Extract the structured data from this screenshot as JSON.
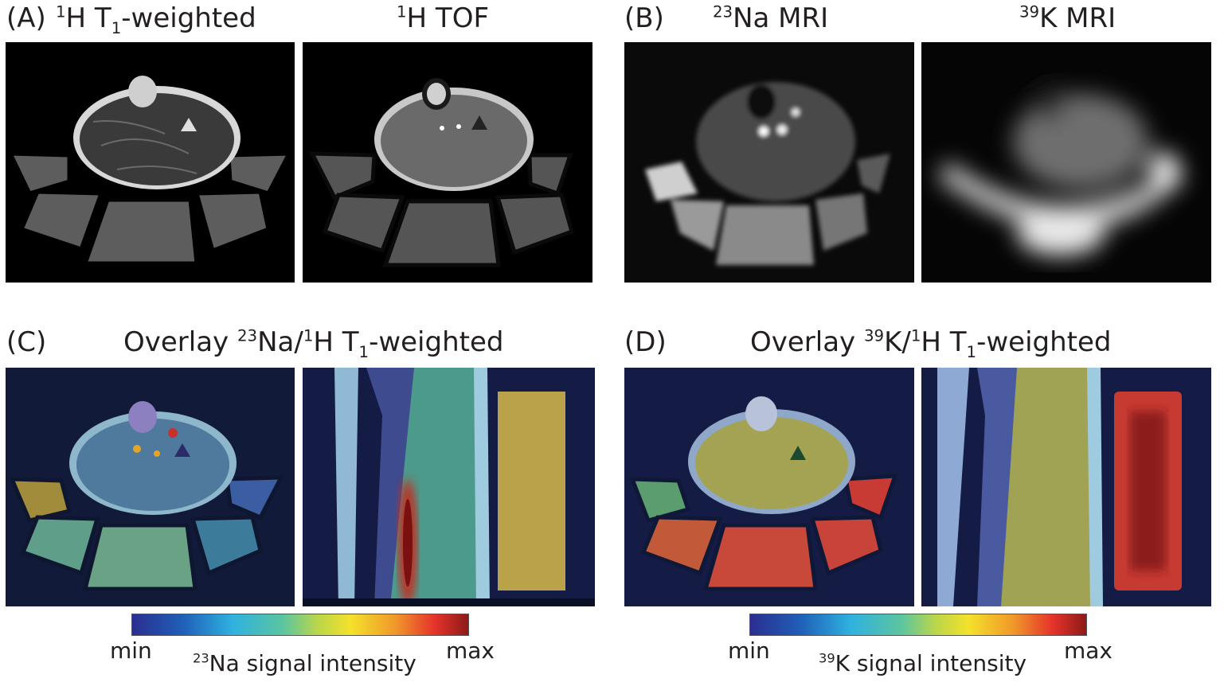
{
  "panels": {
    "A": {
      "letter": "(A)",
      "titles": [
        {
          "sup": "1",
          "main": "H T",
          "sub": "1",
          "tail": "-weighted"
        },
        {
          "sup": "1",
          "main": "H TOF",
          "sub": "",
          "tail": ""
        }
      ]
    },
    "B": {
      "letter": "(B)",
      "titles": [
        {
          "sup": "23",
          "main": "Na MRI",
          "sub": "",
          "tail": ""
        },
        {
          "sup": "39",
          "main": "K MRI",
          "sub": "",
          "tail": ""
        }
      ]
    },
    "C": {
      "letter": "(C)",
      "title": {
        "pre": "Overlay ",
        "sup1": "23",
        "mid": "Na/",
        "sup2": "1",
        "main": "H T",
        "sub": "1",
        "tail": "-weighted"
      }
    },
    "D": {
      "letter": "(D)",
      "title": {
        "pre": "Overlay ",
        "sup1": "39",
        "mid": "K/",
        "sup2": "1",
        "main": "H T",
        "sub": "1",
        "tail": "-weighted"
      }
    }
  },
  "colorbars": [
    {
      "min": "min",
      "max": "max",
      "sup": "23",
      "caption": "Na signal intensity"
    },
    {
      "min": "min",
      "max": "max",
      "sup": "39",
      "caption": "K signal intensity"
    }
  ],
  "colors": {
    "background": "#ffffff",
    "text": "#231f20",
    "colormap": [
      "#2a2f8f",
      "#1f5fb8",
      "#2fb2df",
      "#5cc5a0",
      "#b9d64a",
      "#f4e12b",
      "#f09a2a",
      "#e5332a",
      "#8c1a1a"
    ]
  }
}
